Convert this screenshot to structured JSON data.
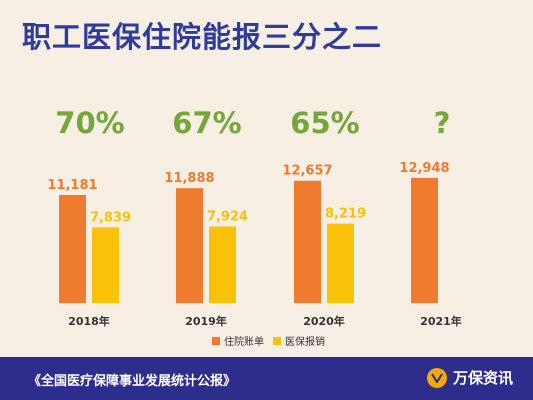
{
  "title": "职工医保住院能报三分之二",
  "ratios": [
    "70%",
    "67%",
    "65%",
    "?"
  ],
  "footer": {
    "source": "《全国医疗保障事业发展统计公报》",
    "brand": "万保资讯"
  },
  "colors": {
    "title": "#2f3c9b",
    "ratio": "#74a63a",
    "hospital_bill": "#ef7b2e",
    "reimbursed": "#f9c209",
    "footer_bg": "#2e2c8d",
    "background": "#f7efe4"
  },
  "chart_data": {
    "type": "bar",
    "categories": [
      "2018年",
      "2019年",
      "2020年",
      "2021年"
    ],
    "series": [
      {
        "name": "住院账单",
        "values": [
          11181,
          11888,
          12657,
          12948
        ],
        "labels": [
          "11,181",
          "11,888",
          "12,657",
          "12,948"
        ]
      },
      {
        "name": "医保报销",
        "values": [
          7839,
          7924,
          8219,
          null
        ],
        "labels": [
          "7,839",
          "7,924",
          "8,219",
          ""
        ]
      }
    ],
    "ylim": [
      0,
      16000
    ],
    "legend": "bottom",
    "grid": false
  }
}
